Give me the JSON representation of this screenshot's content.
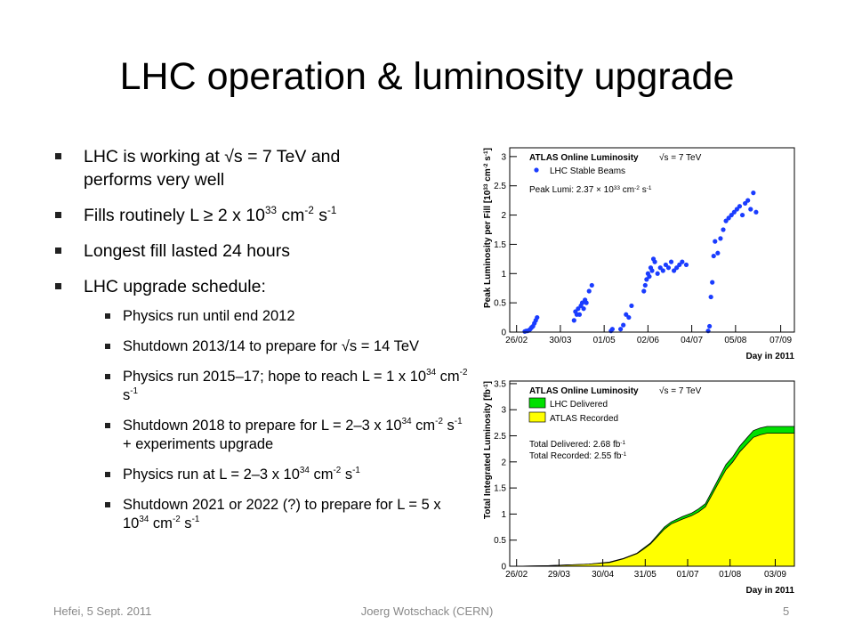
{
  "title": "LHC operation & luminosity upgrade",
  "bullets": [
    {
      "text": [
        "LHC is working at √s = 7 TeV and performs very well"
      ]
    },
    {
      "text": [
        "Fills routinely L ≥ 2 x 10",
        "33",
        " cm",
        "-2",
        " s",
        "-1"
      ]
    },
    {
      "text": [
        "Longest fill lasted 24 hours"
      ]
    },
    {
      "text": [
        "LHC upgrade schedule:"
      ],
      "sub": [
        [
          "Physics run until end 2012"
        ],
        [
          "Shutdown 2013/14 to prepare for √s = 14 TeV"
        ],
        [
          "Physics run 2015–17; hope to reach L = 1 x 10",
          "34",
          " cm",
          "-2",
          " s",
          "-1"
        ],
        [
          "Shutdown 2018 to prepare for L = 2–3 x 10",
          "34",
          " cm",
          "-2",
          " s",
          "-1",
          " + experiments upgrade"
        ],
        [
          "Physics run at L = 2–3 x 10",
          "34",
          " cm",
          "-2",
          " s",
          "-1"
        ],
        [
          "Shutdown 2021 or 2022 (?) to prepare for L = 5 x 10",
          "34",
          " cm",
          "-2",
          " s",
          "-1"
        ]
      ]
    }
  ],
  "footer": {
    "left": "Hefei, 5 Sept. 2011",
    "center": "Joerg Wotschack (CERN)",
    "right": "5"
  },
  "chart_data": [
    {
      "type": "scatter",
      "annotations": [
        "ATLAS Online Luminosity",
        "√s = 7 TeV"
      ],
      "note": [
        "Peak Lumi: 2.37 × 10",
        "33",
        " cm",
        "-2",
        " s",
        "-1"
      ],
      "ylabel": [
        "Peak Luminosity per Fill [10",
        "33",
        " cm",
        "-2",
        " s",
        "-1",
        "]"
      ],
      "xlabel": "Day in 2011",
      "xlim": [
        52,
        260
      ],
      "xticks": [
        {
          "value": 57,
          "label": "26/02"
        },
        {
          "value": 89,
          "label": "30/03"
        },
        {
          "value": 121,
          "label": "01/05"
        },
        {
          "value": 153,
          "label": "02/06"
        },
        {
          "value": 185,
          "label": "04/07"
        },
        {
          "value": 217,
          "label": "05/08"
        },
        {
          "value": 250,
          "label": "07/09"
        }
      ],
      "ylim": [
        0,
        3.15
      ],
      "yticks": [
        0,
        0.5,
        1,
        1.5,
        2,
        2.5,
        3
      ],
      "series": [
        {
          "name": "LHC Stable Beams",
          "color": "#1a3cff",
          "x": [
            63,
            64,
            65,
            66,
            67,
            68,
            69,
            70,
            71,
            72,
            99,
            100,
            101,
            102,
            103,
            104,
            105,
            106,
            107,
            108,
            110,
            112,
            126,
            127,
            133,
            135,
            137,
            139,
            141,
            150,
            151,
            152,
            153,
            154,
            155,
            156,
            157,
            158,
            160,
            162,
            164,
            166,
            168,
            170,
            172,
            174,
            176,
            178,
            181,
            197,
            198,
            199,
            200,
            201,
            202,
            204,
            206,
            208,
            210,
            212,
            214,
            216,
            218,
            220,
            222,
            224,
            226,
            228,
            230,
            232
          ],
          "values": [
            0.01,
            0.02,
            0.02,
            0.03,
            0.05,
            0.08,
            0.1,
            0.15,
            0.2,
            0.25,
            0.2,
            0.35,
            0.3,
            0.4,
            0.3,
            0.45,
            0.5,
            0.4,
            0.55,
            0.5,
            0.7,
            0.8,
            0.02,
            0.05,
            0.05,
            0.12,
            0.3,
            0.25,
            0.45,
            0.7,
            0.8,
            0.9,
            1.0,
            0.95,
            1.1,
            1.05,
            1.25,
            1.2,
            1.0,
            1.1,
            1.05,
            1.15,
            1.1,
            1.2,
            1.05,
            1.1,
            1.15,
            1.2,
            1.15,
            0.02,
            0.1,
            0.6,
            0.85,
            1.3,
            1.55,
            1.35,
            1.6,
            1.75,
            1.9,
            1.95,
            2.0,
            2.05,
            2.1,
            2.15,
            2.0,
            2.2,
            2.25,
            2.1,
            2.38,
            2.05
          ]
        }
      ]
    },
    {
      "type": "area",
      "annotations": [
        "ATLAS Online Luminosity",
        "√s = 7 TeV"
      ],
      "notes": [
        [
          "Total Delivered: 2.68 fb",
          "-1"
        ],
        [
          "Total Recorded: 2.55 fb",
          "-1"
        ]
      ],
      "ylabel": [
        "Total Integrated Luminosity [fb",
        "-1",
        "]"
      ],
      "xlabel": "Day in 2011",
      "xlim": [
        52,
        260
      ],
      "xticks": [
        {
          "value": 57,
          "label": "26/02"
        },
        {
          "value": 88,
          "label": "29/03"
        },
        {
          "value": 120,
          "label": "30/04"
        },
        {
          "value": 151,
          "label": "31/05"
        },
        {
          "value": 182,
          "label": "01/07"
        },
        {
          "value": 213,
          "label": "01/08"
        },
        {
          "value": 246,
          "label": "03/09"
        }
      ],
      "ylim": [
        0,
        3.55
      ],
      "yticks": [
        0,
        0.5,
        1,
        1.5,
        2,
        2.5,
        3,
        3.5
      ],
      "x": [
        57,
        80,
        100,
        110,
        125,
        135,
        145,
        150,
        155,
        160,
        165,
        170,
        178,
        185,
        190,
        195,
        200,
        205,
        210,
        215,
        220,
        225,
        230,
        235,
        240,
        246,
        260
      ],
      "series": [
        {
          "name": "LHC Delivered",
          "color": "#00e000",
          "values": [
            0,
            0.01,
            0.03,
            0.04,
            0.08,
            0.15,
            0.25,
            0.35,
            0.45,
            0.6,
            0.75,
            0.85,
            0.95,
            1.02,
            1.1,
            1.2,
            1.45,
            1.7,
            1.95,
            2.1,
            2.3,
            2.45,
            2.6,
            2.65,
            2.68,
            2.68,
            2.68
          ]
        },
        {
          "name": "ATLAS Recorded",
          "color": "#ffff00",
          "values": [
            0,
            0.01,
            0.03,
            0.04,
            0.07,
            0.14,
            0.24,
            0.33,
            0.43,
            0.57,
            0.71,
            0.81,
            0.9,
            0.97,
            1.04,
            1.14,
            1.38,
            1.62,
            1.85,
            2.0,
            2.19,
            2.33,
            2.47,
            2.52,
            2.55,
            2.55,
            2.55
          ]
        }
      ]
    }
  ]
}
